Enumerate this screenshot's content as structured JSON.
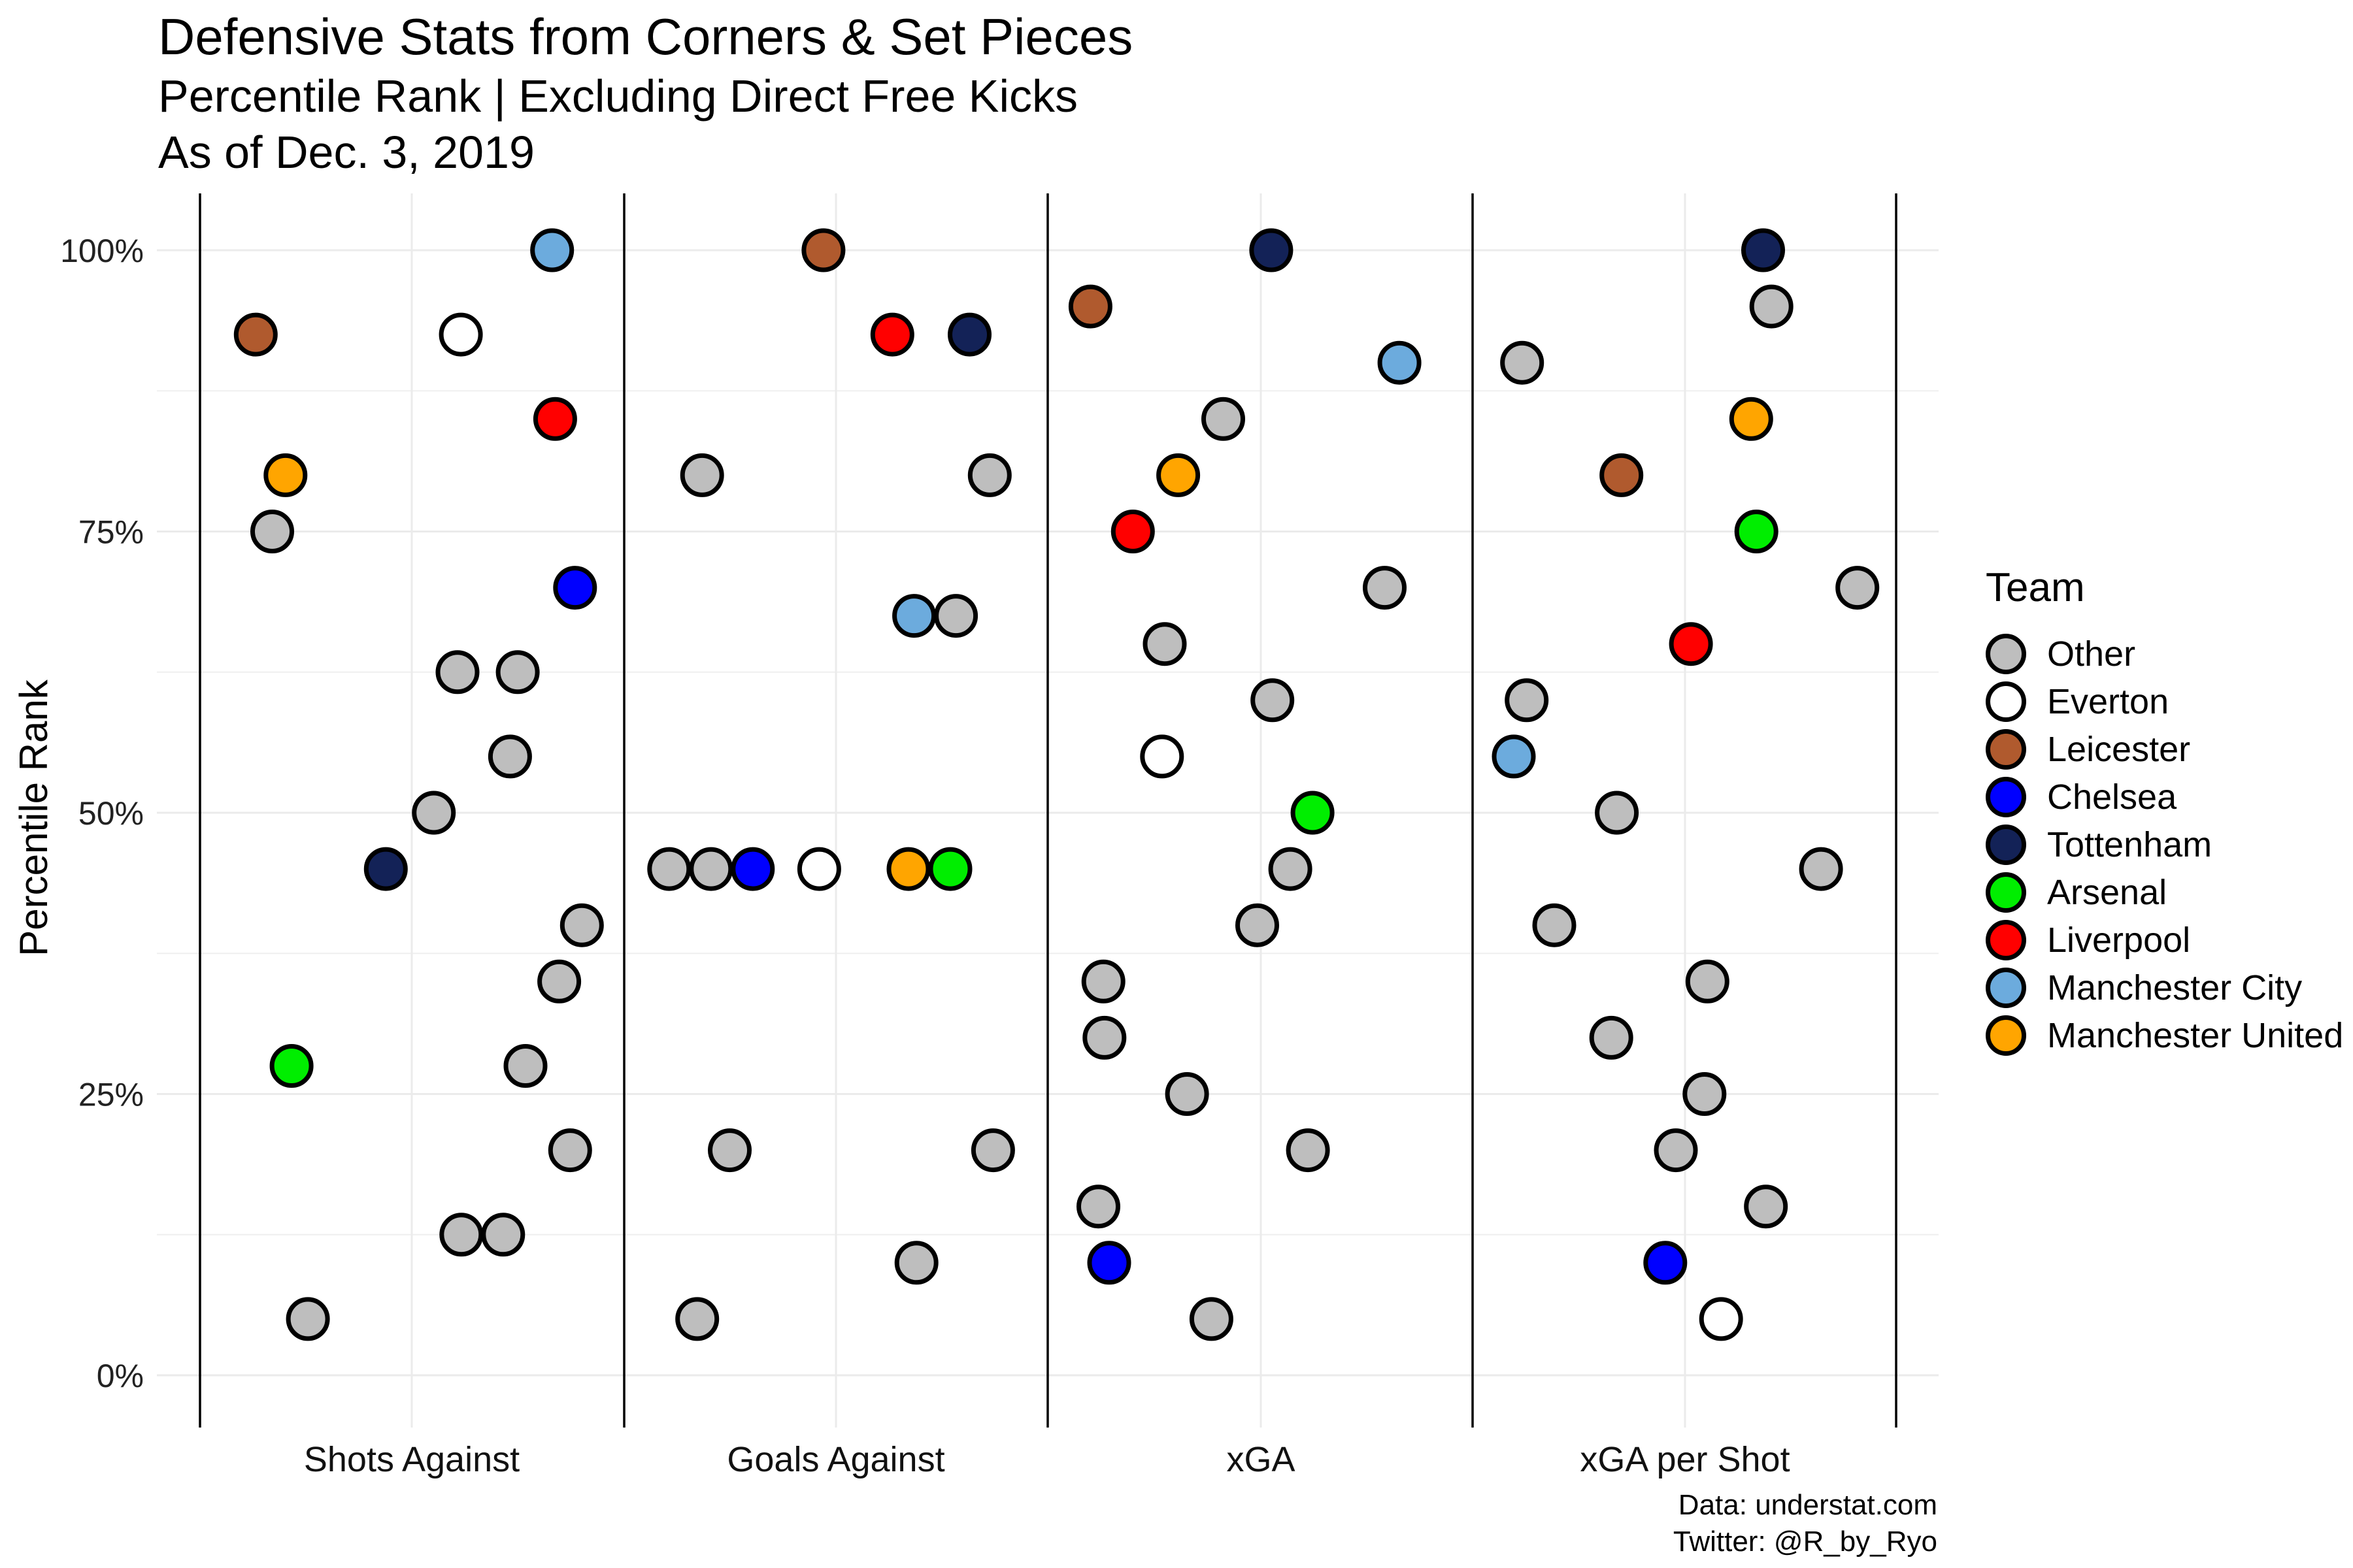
{
  "title": "Defensive Stats from Corners & Set Pieces",
  "subtitle": "Percentile Rank | Excluding Direct Free Kicks",
  "subtitle2": "As of Dec. 3, 2019",
  "caption": [
    "Data: understat.com",
    "Twitter: @R_by_Ryo"
  ],
  "legend": {
    "title": "Team",
    "items": [
      {
        "team": "Other",
        "color": "#BEBEBE"
      },
      {
        "team": "Everton",
        "color": "#FFFFFF"
      },
      {
        "team": "Leicester",
        "color": "#B05A2E"
      },
      {
        "team": "Chelsea",
        "color": "#0000FF"
      },
      {
        "team": "Tottenham",
        "color": "#132257"
      },
      {
        "team": "Arsenal",
        "color": "#00EE00"
      },
      {
        "team": "Liverpool",
        "color": "#FF0000"
      },
      {
        "team": "Manchester City",
        "color": "#6CABDD"
      },
      {
        "team": "Manchester United",
        "color": "#FFA500"
      }
    ]
  },
  "chart_data": {
    "type": "scatter",
    "ylabel": "Percentile Rank",
    "ylim": [
      0,
      100
    ],
    "yticks": [
      "0%",
      "25%",
      "50%",
      "75%",
      "100%"
    ],
    "grid": true,
    "legend_position": "right",
    "categories": [
      "Shots Against",
      "Goals Against",
      "xGA",
      "xGA per Shot"
    ],
    "series": [
      {
        "name": "Other",
        "points": [
          {
            "cat": "Shots Against",
            "y": 75
          },
          {
            "cat": "Shots Against",
            "y": 62.5
          },
          {
            "cat": "Shots Against",
            "y": 62.5
          },
          {
            "cat": "Shots Against",
            "y": 55
          },
          {
            "cat": "Shots Against",
            "y": 50
          },
          {
            "cat": "Shots Against",
            "y": 40
          },
          {
            "cat": "Shots Against",
            "y": 35
          },
          {
            "cat": "Shots Against",
            "y": 27.5
          },
          {
            "cat": "Shots Against",
            "y": 20
          },
          {
            "cat": "Shots Against",
            "y": 12.5
          },
          {
            "cat": "Shots Against",
            "y": 12.5
          },
          {
            "cat": "Shots Against",
            "y": 5
          },
          {
            "cat": "Goals Against",
            "y": 80
          },
          {
            "cat": "Goals Against",
            "y": 80
          },
          {
            "cat": "Goals Against",
            "y": 67.5
          },
          {
            "cat": "Goals Against",
            "y": 45
          },
          {
            "cat": "Goals Against",
            "y": 45
          },
          {
            "cat": "Goals Against",
            "y": 20
          },
          {
            "cat": "Goals Against",
            "y": 20
          },
          {
            "cat": "Goals Against",
            "y": 10
          },
          {
            "cat": "Goals Against",
            "y": 5
          },
          {
            "cat": "xGA",
            "y": 85
          },
          {
            "cat": "xGA",
            "y": 70
          },
          {
            "cat": "xGA",
            "y": 65
          },
          {
            "cat": "xGA",
            "y": 60
          },
          {
            "cat": "xGA",
            "y": 45
          },
          {
            "cat": "xGA",
            "y": 40
          },
          {
            "cat": "xGA",
            "y": 35
          },
          {
            "cat": "xGA",
            "y": 30
          },
          {
            "cat": "xGA",
            "y": 25
          },
          {
            "cat": "xGA",
            "y": 20
          },
          {
            "cat": "xGA",
            "y": 15
          },
          {
            "cat": "xGA",
            "y": 5
          },
          {
            "cat": "xGA per Shot",
            "y": 95
          },
          {
            "cat": "xGA per Shot",
            "y": 90
          },
          {
            "cat": "xGA per Shot",
            "y": 70
          },
          {
            "cat": "xGA per Shot",
            "y": 60
          },
          {
            "cat": "xGA per Shot",
            "y": 50
          },
          {
            "cat": "xGA per Shot",
            "y": 45
          },
          {
            "cat": "xGA per Shot",
            "y": 40
          },
          {
            "cat": "xGA per Shot",
            "y": 35
          },
          {
            "cat": "xGA per Shot",
            "y": 30
          },
          {
            "cat": "xGA per Shot",
            "y": 25
          },
          {
            "cat": "xGA per Shot",
            "y": 20
          },
          {
            "cat": "xGA per Shot",
            "y": 15
          }
        ]
      },
      {
        "name": "Everton",
        "points": [
          {
            "cat": "Shots Against",
            "y": 92.5
          },
          {
            "cat": "Goals Against",
            "y": 45
          },
          {
            "cat": "xGA",
            "y": 55
          },
          {
            "cat": "xGA per Shot",
            "y": 5
          }
        ]
      },
      {
        "name": "Leicester",
        "points": [
          {
            "cat": "Shots Against",
            "y": 92.5
          },
          {
            "cat": "Goals Against",
            "y": 100
          },
          {
            "cat": "xGA",
            "y": 95
          },
          {
            "cat": "xGA per Shot",
            "y": 80
          }
        ]
      },
      {
        "name": "Chelsea",
        "points": [
          {
            "cat": "Shots Against",
            "y": 70
          },
          {
            "cat": "Goals Against",
            "y": 45
          },
          {
            "cat": "xGA",
            "y": 10
          },
          {
            "cat": "xGA per Shot",
            "y": 10
          }
        ]
      },
      {
        "name": "Tottenham",
        "points": [
          {
            "cat": "Shots Against",
            "y": 45
          },
          {
            "cat": "Goals Against",
            "y": 92.5
          },
          {
            "cat": "xGA",
            "y": 100
          },
          {
            "cat": "xGA per Shot",
            "y": 100
          }
        ]
      },
      {
        "name": "Arsenal",
        "points": [
          {
            "cat": "Shots Against",
            "y": 27.5
          },
          {
            "cat": "Goals Against",
            "y": 45
          },
          {
            "cat": "xGA",
            "y": 50
          },
          {
            "cat": "xGA per Shot",
            "y": 75
          }
        ]
      },
      {
        "name": "Liverpool",
        "points": [
          {
            "cat": "Shots Against",
            "y": 85
          },
          {
            "cat": "Goals Against",
            "y": 92.5
          },
          {
            "cat": "xGA",
            "y": 75
          },
          {
            "cat": "xGA per Shot",
            "y": 65
          }
        ]
      },
      {
        "name": "Manchester City",
        "points": [
          {
            "cat": "Shots Against",
            "y": 100
          },
          {
            "cat": "Goals Against",
            "y": 67.5
          },
          {
            "cat": "xGA",
            "y": 90
          },
          {
            "cat": "xGA per Shot",
            "y": 55
          }
        ]
      },
      {
        "name": "Manchester United",
        "points": [
          {
            "cat": "Shots Against",
            "y": 80
          },
          {
            "cat": "Goals Against",
            "y": 45
          },
          {
            "cat": "xGA",
            "y": 80
          },
          {
            "cat": "xGA per Shot",
            "y": 85
          }
        ]
      }
    ]
  }
}
